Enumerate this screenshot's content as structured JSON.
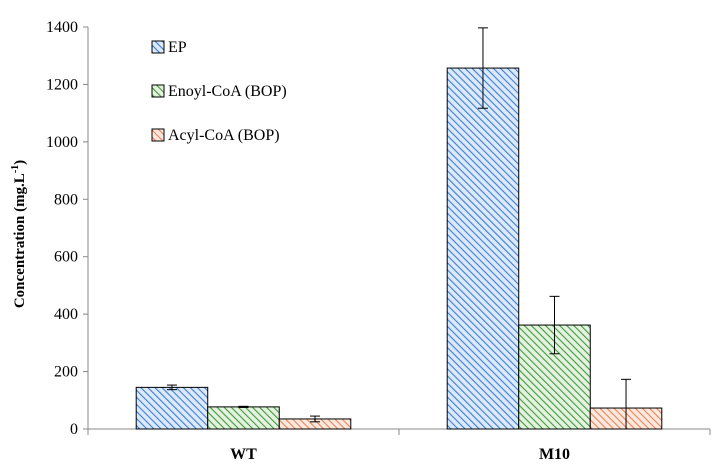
{
  "chart_data": {
    "type": "bar",
    "categories": [
      "WT",
      "M10"
    ],
    "series": [
      {
        "name": "EP",
        "values": [
          145,
          1257
        ],
        "errors": [
          8,
          140
        ],
        "color": "#3a7fd5",
        "fill": "#dde9f8"
      },
      {
        "name": "Enoyl-CoA (BOP)",
        "values": [
          77,
          362
        ],
        "errors": [
          2,
          100
        ],
        "color": "#3e9b3e",
        "fill": "#e6f2e0"
      },
      {
        "name": "Acyl-CoA (BOP)",
        "values": [
          35,
          73
        ],
        "errors": [
          10,
          100
        ],
        "color": "#e8845a",
        "fill": "#fbe9df"
      }
    ],
    "ylabel": "Concentration (mg.L",
    "ylabel_sup": "-1",
    "ylabel_close": ")",
    "ylim": [
      0,
      1400
    ],
    "yticks": [
      0,
      200,
      400,
      600,
      800,
      1000,
      1200,
      1400
    ],
    "legend_position": "top-left-inside",
    "grid": false
  }
}
